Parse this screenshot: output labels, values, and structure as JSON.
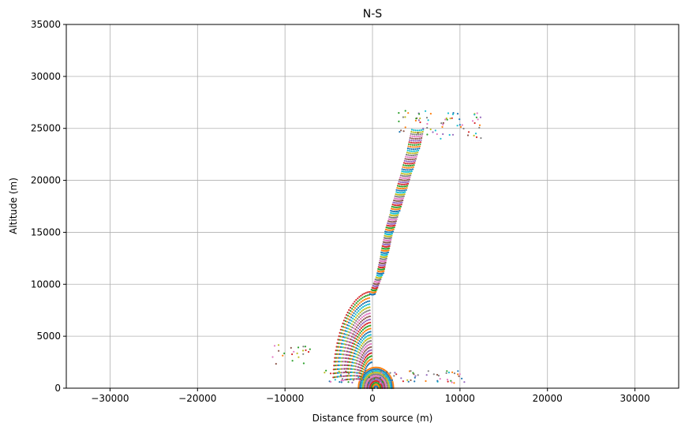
{
  "chart_data": {
    "type": "scatter",
    "title": "N-S",
    "xlabel": "Distance from source (m)",
    "ylabel": "Altitude (m)",
    "xlim": [
      -35000,
      35000
    ],
    "ylim": [
      0,
      35000
    ],
    "xticks": [
      -30000,
      -20000,
      -10000,
      0,
      10000,
      20000,
      30000
    ],
    "xtick_labels": [
      "−30000",
      "−20000",
      "−10000",
      "0",
      "10000",
      "20000",
      "30000"
    ],
    "yticks": [
      0,
      5000,
      10000,
      15000,
      20000,
      25000,
      30000,
      35000
    ],
    "ytick_labels": [
      "0",
      "5000",
      "10000",
      "15000",
      "20000",
      "25000",
      "30000",
      "35000"
    ],
    "grid": true,
    "legend": "none",
    "palette": [
      "#1f77b4",
      "#ff7f0e",
      "#2ca02c",
      "#d62728",
      "#9467bd",
      "#8c564b",
      "#e377c2",
      "#7f7f7f",
      "#bcbd22",
      "#17becf"
    ],
    "marker_size": "tiny",
    "feature_summary": {
      "description_of_structures": "Dense arc-shaped point clusters forming a plume rising from the source",
      "lower_dome": {
        "center_x": 0,
        "center_y": 0,
        "outer_radius": 2000,
        "shells": 12
      },
      "left_arc": {
        "center_x": 0,
        "center_y": 0,
        "r_min": 2200,
        "r_max": 9000,
        "shells": 24,
        "angle_deg": [
          95,
          185
        ]
      },
      "trunk": [
        {
          "x": 0,
          "y": 9000
        },
        {
          "x": 900,
          "y": 11000
        },
        {
          "x": 1400,
          "y": 13000
        },
        {
          "x": 1900,
          "y": 15000
        },
        {
          "x": 2600,
          "y": 17000
        },
        {
          "x": 3300,
          "y": 19000
        },
        {
          "x": 4000,
          "y": 21000
        },
        {
          "x": 4700,
          "y": 23000
        },
        {
          "x": 5200,
          "y": 25000
        }
      ],
      "upper_plume": {
        "x_range": [
          3000,
          12800
        ],
        "y_range": [
          24000,
          26700
        ]
      },
      "low_horizontal_band": {
        "x_range": [
          -5500,
          10600
        ],
        "y_range": [
          500,
          1700
        ]
      },
      "left_outliers": {
        "x_range": [
          -12000,
          -7000
        ],
        "y_range": [
          2300,
          4400
        ]
      }
    }
  }
}
